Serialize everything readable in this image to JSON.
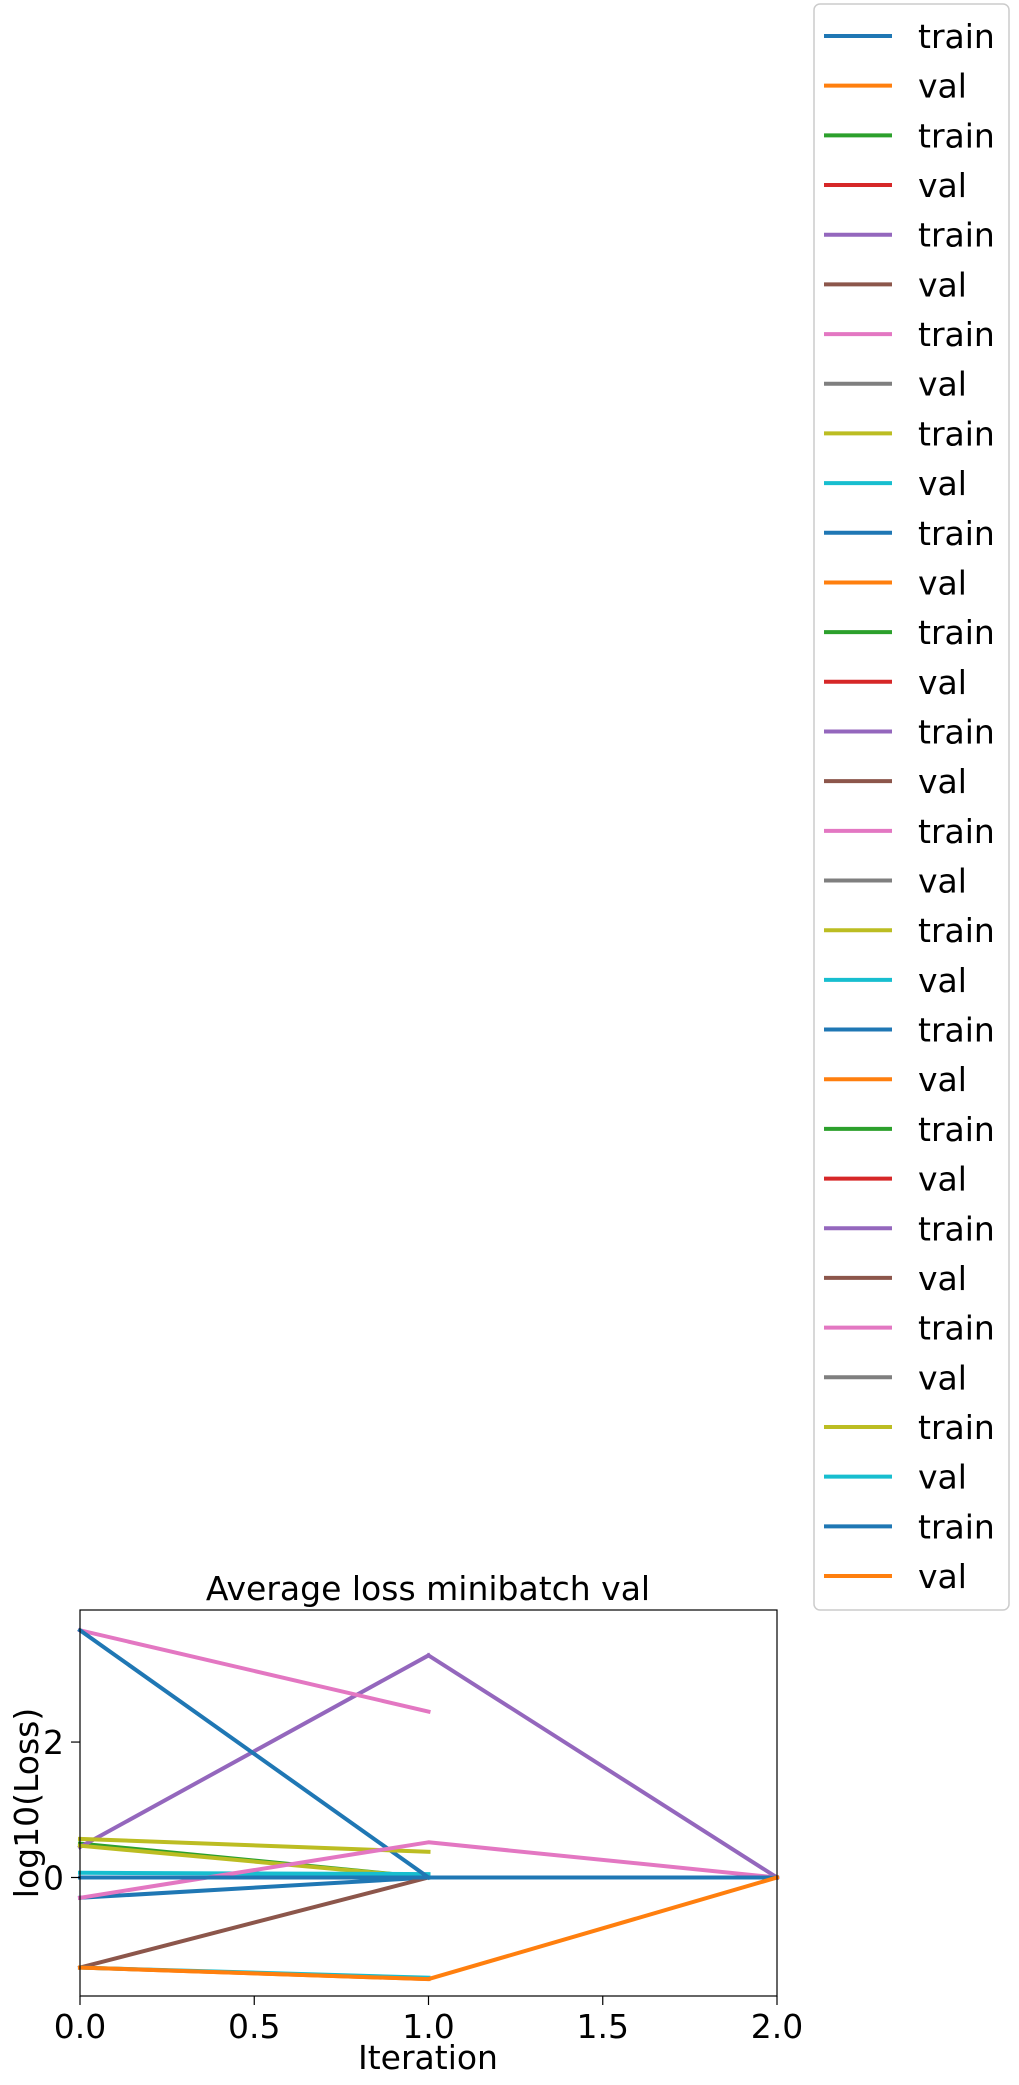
{
  "chart_data": {
    "type": "line",
    "title": "Average loss minibatch val",
    "xlabel": "Iteration",
    "ylabel": "log10(Loss)",
    "xlim": [
      0,
      2
    ],
    "ylim": [
      -1.75,
      3.95
    ],
    "xticks": [
      {
        "value": 0.0,
        "label": "0.0"
      },
      {
        "value": 0.5,
        "label": "0.5"
      },
      {
        "value": 1.0,
        "label": "1.0"
      },
      {
        "value": 1.5,
        "label": "1.5"
      },
      {
        "value": 2.0,
        "label": "2.0"
      }
    ],
    "yticks": [
      {
        "value": 0,
        "label": "0"
      },
      {
        "value": 2,
        "label": "2"
      }
    ],
    "grid": false,
    "legend_position": "outside-right",
    "series": [
      {
        "name": "train",
        "color": "#1f77b4",
        "x": [
          0,
          1
        ],
        "y": [
          -0.3,
          0.0
        ]
      },
      {
        "name": "val",
        "color": "#ff7f0e",
        "x": [
          0,
          1
        ],
        "y": [
          -1.33,
          -1.5
        ]
      },
      {
        "name": "train",
        "color": "#2ca02c",
        "x": [
          0,
          1
        ],
        "y": [
          0.5,
          0.0
        ]
      },
      {
        "name": "val",
        "color": "#d62728",
        "x": [
          0,
          1
        ],
        "y": [
          0.0,
          0.0
        ]
      },
      {
        "name": "train",
        "color": "#9467bd",
        "x": [
          0,
          1
        ],
        "y": [
          0.45,
          3.28
        ]
      },
      {
        "name": "val",
        "color": "#8c564b",
        "x": [
          0,
          1
        ],
        "y": [
          -1.33,
          0.0
        ]
      },
      {
        "name": "train",
        "color": "#e377c2",
        "x": [
          0,
          1
        ],
        "y": [
          3.65,
          2.45
        ]
      },
      {
        "name": "val",
        "color": "#7f7f7f",
        "x": [
          0,
          1
        ],
        "y": [
          0.0,
          0.0
        ]
      },
      {
        "name": "train",
        "color": "#bcbd22",
        "x": [
          0,
          1
        ],
        "y": [
          0.47,
          0.0
        ]
      },
      {
        "name": "val",
        "color": "#17becf",
        "x": [
          0,
          1
        ],
        "y": [
          0.07,
          0.05
        ]
      },
      {
        "name": "train",
        "color": "#1f77b4",
        "x": [
          0,
          1
        ],
        "y": [
          3.65,
          0.0
        ]
      },
      {
        "name": "val",
        "color": "#ff7f0e",
        "x": [
          0,
          1
        ],
        "y": [
          0.0,
          0.0
        ]
      },
      {
        "name": "train",
        "color": "#2ca02c",
        "x": [
          0,
          1
        ],
        "y": [
          0.0,
          0.0
        ]
      },
      {
        "name": "val",
        "color": "#d62728",
        "x": [
          0,
          1
        ],
        "y": [
          0.0,
          0.0
        ]
      },
      {
        "name": "train",
        "color": "#9467bd",
        "x": [
          0,
          1,
          2
        ],
        "y": [
          0.0,
          0.0,
          0.0
        ]
      },
      {
        "name": "val",
        "color": "#8c564b",
        "x": [
          0,
          1
        ],
        "y": [
          0.0,
          0.0
        ]
      },
      {
        "name": "train",
        "color": "#e377c2",
        "x": [
          0,
          1
        ],
        "y": [
          0.0,
          0.0
        ]
      },
      {
        "name": "val",
        "color": "#7f7f7f",
        "x": [
          0,
          1
        ],
        "y": [
          0.0,
          0.0
        ]
      },
      {
        "name": "train",
        "color": "#bcbd22",
        "x": [
          0,
          1
        ],
        "y": [
          0.57,
          0.38
        ]
      },
      {
        "name": "val",
        "color": "#17becf",
        "x": [
          0,
          1
        ],
        "y": [
          -1.33,
          -1.48
        ]
      },
      {
        "name": "train",
        "color": "#1f77b4",
        "x": [
          0,
          1
        ],
        "y": [
          0.0,
          0.0
        ]
      },
      {
        "name": "val",
        "color": "#ff7f0e",
        "x": [
          0,
          1
        ],
        "y": [
          0.0,
          0.0
        ]
      },
      {
        "name": "train",
        "color": "#2ca02c",
        "x": [
          0,
          1,
          2
        ],
        "y": [
          0.0,
          0.0,
          0.0
        ]
      },
      {
        "name": "val",
        "color": "#d62728",
        "x": [
          0,
          1,
          2
        ],
        "y": [
          0.0,
          0.0,
          0.0
        ]
      },
      {
        "name": "train",
        "color": "#9467bd",
        "x": [
          1,
          2
        ],
        "y": [
          3.28,
          0.0
        ]
      },
      {
        "name": "val",
        "color": "#8c564b",
        "x": [
          0,
          1,
          2
        ],
        "y": [
          0.0,
          0.0,
          0.0
        ]
      },
      {
        "name": "train",
        "color": "#e377c2",
        "x": [
          0,
          1,
          2
        ],
        "y": [
          -0.3,
          0.52,
          0.0
        ]
      },
      {
        "name": "val",
        "color": "#7f7f7f",
        "x": [
          0,
          1,
          2
        ],
        "y": [
          0.0,
          0.0,
          0.0
        ]
      },
      {
        "name": "train",
        "color": "#bcbd22",
        "x": [
          0,
          1,
          2
        ],
        "y": [
          0.0,
          0.0,
          0.0
        ]
      },
      {
        "name": "val",
        "color": "#17becf",
        "x": [
          0,
          1,
          2
        ],
        "y": [
          0.0,
          0.0,
          0.0
        ]
      },
      {
        "name": "train",
        "color": "#1f77b4",
        "x": [
          0,
          1,
          2
        ],
        "y": [
          0.0,
          0.0,
          0.0
        ]
      },
      {
        "name": "val",
        "color": "#ff7f0e",
        "x": [
          0,
          1,
          2
        ],
        "y": [
          -1.33,
          -1.5,
          0.0
        ]
      }
    ]
  }
}
